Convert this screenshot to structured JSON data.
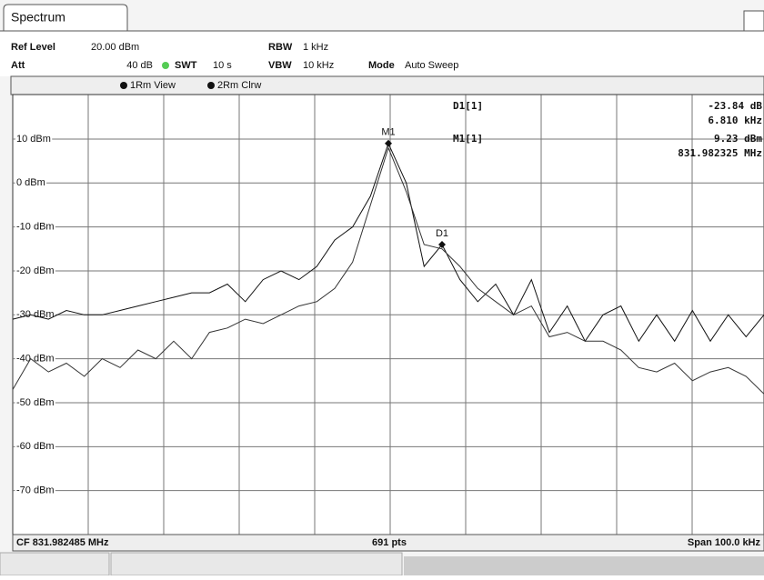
{
  "tab": "Spectrum",
  "header": {
    "ref_level": {
      "label": "Ref Level",
      "value": "20.00 dBm"
    },
    "att": {
      "label": "Att",
      "value": "40 dB"
    },
    "swt": {
      "label": "SWT",
      "value": "10 s"
    },
    "rbw": {
      "label": "RBW",
      "value": "1 kHz"
    },
    "vbw": {
      "label": "VBW",
      "value": "10 kHz"
    },
    "mode": {
      "label": "Mode",
      "value": "Auto Sweep"
    }
  },
  "trace_legend": [
    "1Rm View",
    "2Rm Clrw"
  ],
  "marker_info": {
    "d1": {
      "name": "D1[1]",
      "level": "-23.84 dB",
      "freq": "6.810 kHz"
    },
    "m1": {
      "name": "M1[1]",
      "level": "9.23 dBm",
      "freq": "831.982325 MHz"
    }
  },
  "chart_data": {
    "type": "line",
    "ylim": [
      -80,
      20
    ],
    "yticks": [
      {
        "value": 10,
        "label": "10 dBm"
      },
      {
        "value": 0,
        "label": "0 dBm"
      },
      {
        "value": -10,
        "label": "-10 dBm"
      },
      {
        "value": -20,
        "label": "-20 dBm"
      },
      {
        "value": -30,
        "label": "-30 dBm"
      },
      {
        "value": -40,
        "label": "-40 dBm"
      },
      {
        "value": -50,
        "label": "-50 dBm"
      },
      {
        "value": -60,
        "label": "-60 dBm"
      },
      {
        "value": -70,
        "label": "-70 dBm"
      }
    ],
    "grid": true,
    "series": [
      {
        "color": "#111111",
        "values": [
          -31,
          -30,
          -31,
          -29,
          -30,
          -30,
          -29,
          -28,
          -27,
          -26,
          -25,
          -25,
          -23,
          -27,
          -22,
          -20,
          -22,
          -19,
          -13,
          -10,
          -3,
          9,
          0,
          -19,
          -14,
          -22,
          -27,
          -23,
          -30,
          -22,
          -34,
          -28,
          -36,
          -30,
          -28,
          -36,
          -30,
          -36,
          -29,
          -36,
          -30,
          -35,
          -30
        ]
      },
      {
        "color": "#333333",
        "values": [
          -47,
          -40,
          -43,
          -41,
          -44,
          -40,
          -42,
          -38,
          -40,
          -36,
          -40,
          -34,
          -33,
          -31,
          -32,
          -30,
          -28,
          -27,
          -24,
          -18,
          -5,
          8,
          -2,
          -14,
          -15,
          -19,
          -24,
          -27,
          -30,
          -28,
          -35,
          -34,
          -36,
          -36,
          -38,
          -42,
          -43,
          -41,
          -45,
          -43,
          -42,
          -44,
          -48
        ]
      }
    ],
    "markers": [
      "M1",
      "D1"
    ]
  },
  "footer": {
    "cf": "CF 831.982485 MHz",
    "points": "691 pts",
    "span": "Span 100.0 kHz"
  }
}
